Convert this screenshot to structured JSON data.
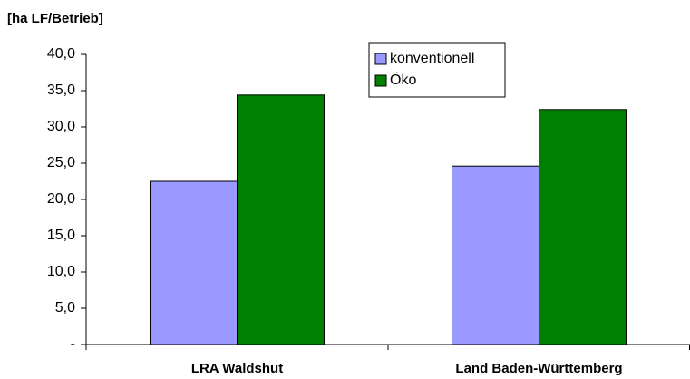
{
  "chart_data": {
    "type": "bar",
    "title": "[ha LF/Betrieb]",
    "categories": [
      "LRA Waldshut",
      "Land Baden-Württemberg"
    ],
    "series": [
      {
        "name": "konventionell",
        "color": "#9999ff",
        "values": [
          22.5,
          24.6
        ]
      },
      {
        "name": "Öko",
        "color": "#008000",
        "values": [
          34.4,
          32.4
        ]
      }
    ],
    "ylim": [
      0,
      40
    ],
    "yticks": [
      {
        "value": 0,
        "label": "-"
      },
      {
        "value": 5,
        "label": "5,0"
      },
      {
        "value": 10,
        "label": "10,0"
      },
      {
        "value": 15,
        "label": "15,0"
      },
      {
        "value": 20,
        "label": "20,0"
      },
      {
        "value": 25,
        "label": "25,0"
      },
      {
        "value": 30,
        "label": "30,0"
      },
      {
        "value": 35,
        "label": "35,0"
      },
      {
        "value": 40,
        "label": "40,0"
      }
    ],
    "grid": false,
    "legend": "top"
  }
}
